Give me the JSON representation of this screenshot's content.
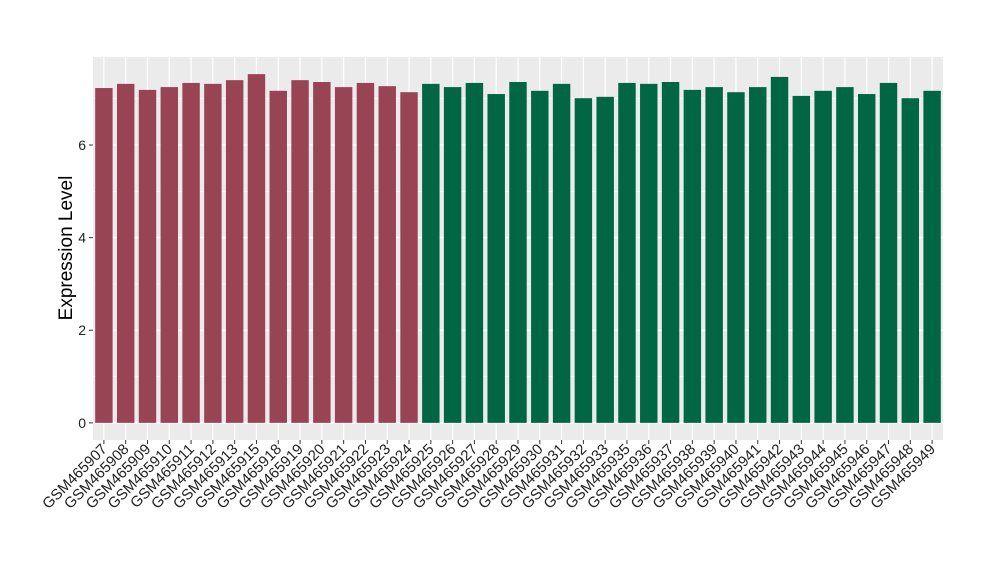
{
  "chart_data": {
    "type": "bar",
    "y_label": "Expression Level",
    "categories": [
      "GSM465907",
      "GSM465908",
      "GSM465909",
      "GSM465910",
      "GSM465911",
      "GSM465912",
      "GSM465913",
      "GSM465915",
      "GSM465918",
      "GSM465919",
      "GSM465920",
      "GSM465921",
      "GSM465922",
      "GSM465923",
      "GSM465924",
      "GSM465925",
      "GSM465926",
      "GSM465927",
      "GSM465928",
      "GSM465929",
      "GSM465930",
      "GSM465931",
      "GSM465932",
      "GSM465933",
      "GSM465935",
      "GSM465936",
      "GSM465937",
      "GSM465938",
      "GSM465939",
      "GSM465940",
      "GSM465941",
      "GSM465942",
      "GSM465943",
      "GSM465944",
      "GSM465945",
      "GSM465946",
      "GSM465947",
      "GSM465948",
      "GSM465949"
    ],
    "values": [
      7.23,
      7.32,
      7.19,
      7.25,
      7.34,
      7.32,
      7.4,
      7.53,
      7.17,
      7.4,
      7.36,
      7.25,
      7.34,
      7.27,
      7.14,
      7.32,
      7.25,
      7.34,
      7.1,
      7.36,
      7.17,
      7.32,
      7.01,
      7.04,
      7.34,
      7.32,
      7.36,
      7.19,
      7.25,
      7.14,
      7.25,
      7.47,
      7.06,
      7.17,
      7.25,
      7.1,
      7.34,
      7.01,
      7.17
    ],
    "bar_colors": [
      "#994455",
      "#994455",
      "#994455",
      "#994455",
      "#994455",
      "#994455",
      "#994455",
      "#994455",
      "#994455",
      "#994455",
      "#994455",
      "#994455",
      "#994455",
      "#994455",
      "#994455",
      "#006644",
      "#006644",
      "#006644",
      "#006644",
      "#006644",
      "#006644",
      "#006644",
      "#006644",
      "#006644",
      "#006644",
      "#006644",
      "#006644",
      "#006644",
      "#006644",
      "#006644",
      "#006644",
      "#006644",
      "#006644",
      "#006644",
      "#006644",
      "#006644",
      "#006644",
      "#006644",
      "#006644"
    ],
    "ylim": [
      -0.37,
      7.9
    ],
    "yticks": [
      0,
      2,
      4,
      6
    ],
    "minor_yticks": [
      1,
      3,
      5,
      7
    ],
    "grid": true
  }
}
